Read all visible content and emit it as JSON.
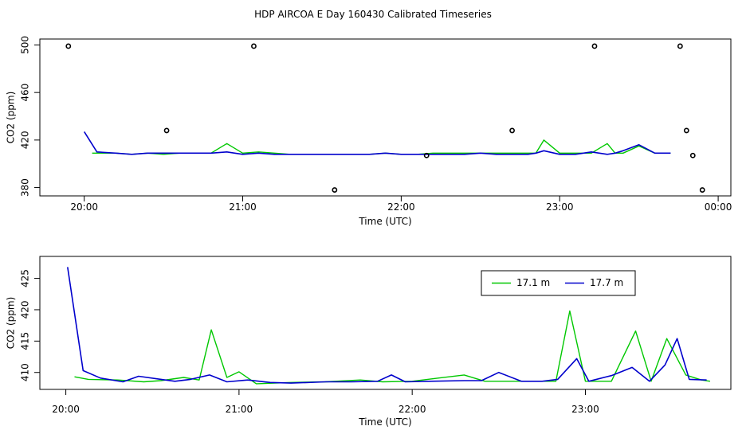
{
  "figure": {
    "title": "HDP AIRCOA E  Day 160430  Calibrated Timeseries"
  },
  "colors": {
    "series_a": "#00c800",
    "series_b": "#0000cc",
    "outliers": "#000000",
    "axes": "#000000"
  },
  "chart_data": [
    {
      "type": "line",
      "name": "overview",
      "title": "",
      "xlabel": "Time (UTC)",
      "ylabel": "CO2 (ppm)",
      "xlim": [
        19.72,
        24.08
      ],
      "ylim": [
        373,
        505
      ],
      "xticks": [
        20,
        21,
        22,
        23,
        24
      ],
      "xtick_labels": [
        "20:00",
        "21:00",
        "22:00",
        "23:00",
        "00:00"
      ],
      "yticks": [
        380,
        420,
        460,
        500
      ],
      "ytick_labels": [
        "380",
        "420",
        "460",
        "500"
      ],
      "series": [
        {
          "color": "#00c800",
          "x": [
            20.05,
            20.1,
            20.2,
            20.3,
            20.4,
            20.5,
            20.6,
            20.7,
            20.8,
            20.9,
            21.0,
            21.1,
            21.2,
            21.3,
            21.4,
            21.5,
            21.6,
            21.7,
            21.8,
            21.9,
            22.0,
            22.1,
            22.2,
            22.3,
            22.4,
            22.5,
            22.6,
            22.7,
            22.8,
            22.85,
            22.9,
            23.0,
            23.1,
            23.2,
            23.3,
            23.35,
            23.4,
            23.5,
            23.6,
            23.7
          ],
          "values": [
            409,
            409,
            409,
            408,
            409,
            408,
            409,
            409,
            409,
            417,
            409,
            410,
            409,
            408,
            408,
            408,
            408,
            408,
            408,
            409,
            408,
            408,
            409,
            409,
            409,
            409,
            409,
            409,
            409,
            409,
            420,
            409,
            409,
            409,
            417,
            409,
            409,
            415,
            409,
            409
          ]
        },
        {
          "color": "#0000cc",
          "x": [
            20.0,
            20.08,
            20.2,
            20.3,
            20.4,
            20.5,
            20.6,
            20.7,
            20.8,
            20.9,
            21.0,
            21.1,
            21.2,
            21.3,
            21.4,
            21.5,
            21.6,
            21.7,
            21.8,
            21.9,
            22.0,
            22.1,
            22.2,
            22.3,
            22.4,
            22.5,
            22.6,
            22.7,
            22.8,
            22.85,
            22.9,
            23.0,
            23.1,
            23.2,
            23.3,
            23.35,
            23.4,
            23.5,
            23.6,
            23.7
          ],
          "values": [
            427,
            410,
            409,
            408,
            409,
            409,
            409,
            409,
            409,
            410,
            408,
            409,
            408,
            408,
            408,
            408,
            408,
            408,
            408,
            409,
            408,
            408,
            408,
            408,
            408,
            409,
            408,
            408,
            408,
            409,
            411,
            408,
            408,
            410,
            408,
            409,
            411,
            416,
            409,
            409
          ]
        },
        {
          "type": "scatter",
          "color": "#000000",
          "x": [
            19.9,
            20.52,
            21.07,
            21.58,
            22.16,
            22.7,
            23.22,
            23.76,
            23.8,
            23.84,
            23.9
          ],
          "values": [
            499,
            428,
            499,
            378,
            407,
            428,
            499,
            499,
            428,
            407,
            378
          ]
        }
      ]
    },
    {
      "type": "line",
      "name": "detail",
      "title": "",
      "xlabel": "Time (UTC)",
      "ylabel": "CO2 (ppm)",
      "xlim": [
        19.85,
        23.84
      ],
      "ylim": [
        407.3,
        428.5
      ],
      "xticks": [
        20,
        21,
        22,
        23
      ],
      "xtick_labels": [
        "20:00",
        "21:00",
        "22:00",
        "23:00"
      ],
      "yticks": [
        410,
        415,
        420,
        425
      ],
      "ytick_labels": [
        "410",
        "415",
        "420",
        "425"
      ],
      "legend": {
        "placement": "top-right",
        "entries": [
          "17.1 m",
          "17.7 m"
        ]
      },
      "series": [
        {
          "name": "17.1 m",
          "color": "#00c800",
          "x": [
            20.05,
            20.13,
            20.3,
            20.45,
            20.55,
            20.68,
            20.77,
            20.84,
            20.93,
            21.0,
            21.1,
            21.3,
            21.5,
            21.7,
            21.83,
            22.0,
            22.15,
            22.3,
            22.42,
            22.55,
            22.7,
            22.83,
            22.91,
            23.0,
            23.15,
            23.29,
            23.38,
            23.47,
            23.58,
            23.67,
            23.72
          ],
          "values": [
            409.3,
            408.9,
            408.8,
            408.5,
            408.7,
            409.2,
            408.8,
            416.8,
            409.2,
            410.1,
            408.2,
            408.4,
            408.5,
            408.8,
            408.5,
            408.6,
            409.1,
            409.6,
            408.6,
            408.6,
            408.6,
            408.6,
            419.8,
            408.6,
            408.6,
            416.6,
            408.6,
            415.4,
            409.6,
            408.8,
            408.6
          ]
        },
        {
          "name": "17.7 m",
          "color": "#0000cc",
          "x": [
            20.01,
            20.1,
            20.2,
            20.33,
            20.42,
            20.55,
            20.63,
            20.72,
            20.83,
            20.93,
            21.05,
            21.18,
            21.3,
            21.5,
            21.65,
            21.8,
            21.88,
            21.96,
            22.1,
            22.3,
            22.4,
            22.5,
            22.63,
            22.75,
            22.84,
            22.95,
            23.02,
            23.15,
            23.27,
            23.37,
            23.46,
            23.53,
            23.6,
            23.7
          ],
          "values": [
            426.8,
            410.3,
            409.1,
            408.5,
            409.4,
            408.9,
            408.6,
            408.9,
            409.6,
            408.5,
            408.8,
            408.4,
            408.3,
            408.5,
            408.5,
            408.6,
            409.6,
            408.5,
            408.6,
            408.7,
            408.7,
            410.0,
            408.6,
            408.6,
            408.9,
            412.2,
            408.6,
            409.5,
            410.8,
            408.6,
            411.2,
            415.4,
            408.9,
            408.8
          ]
        }
      ]
    }
  ]
}
